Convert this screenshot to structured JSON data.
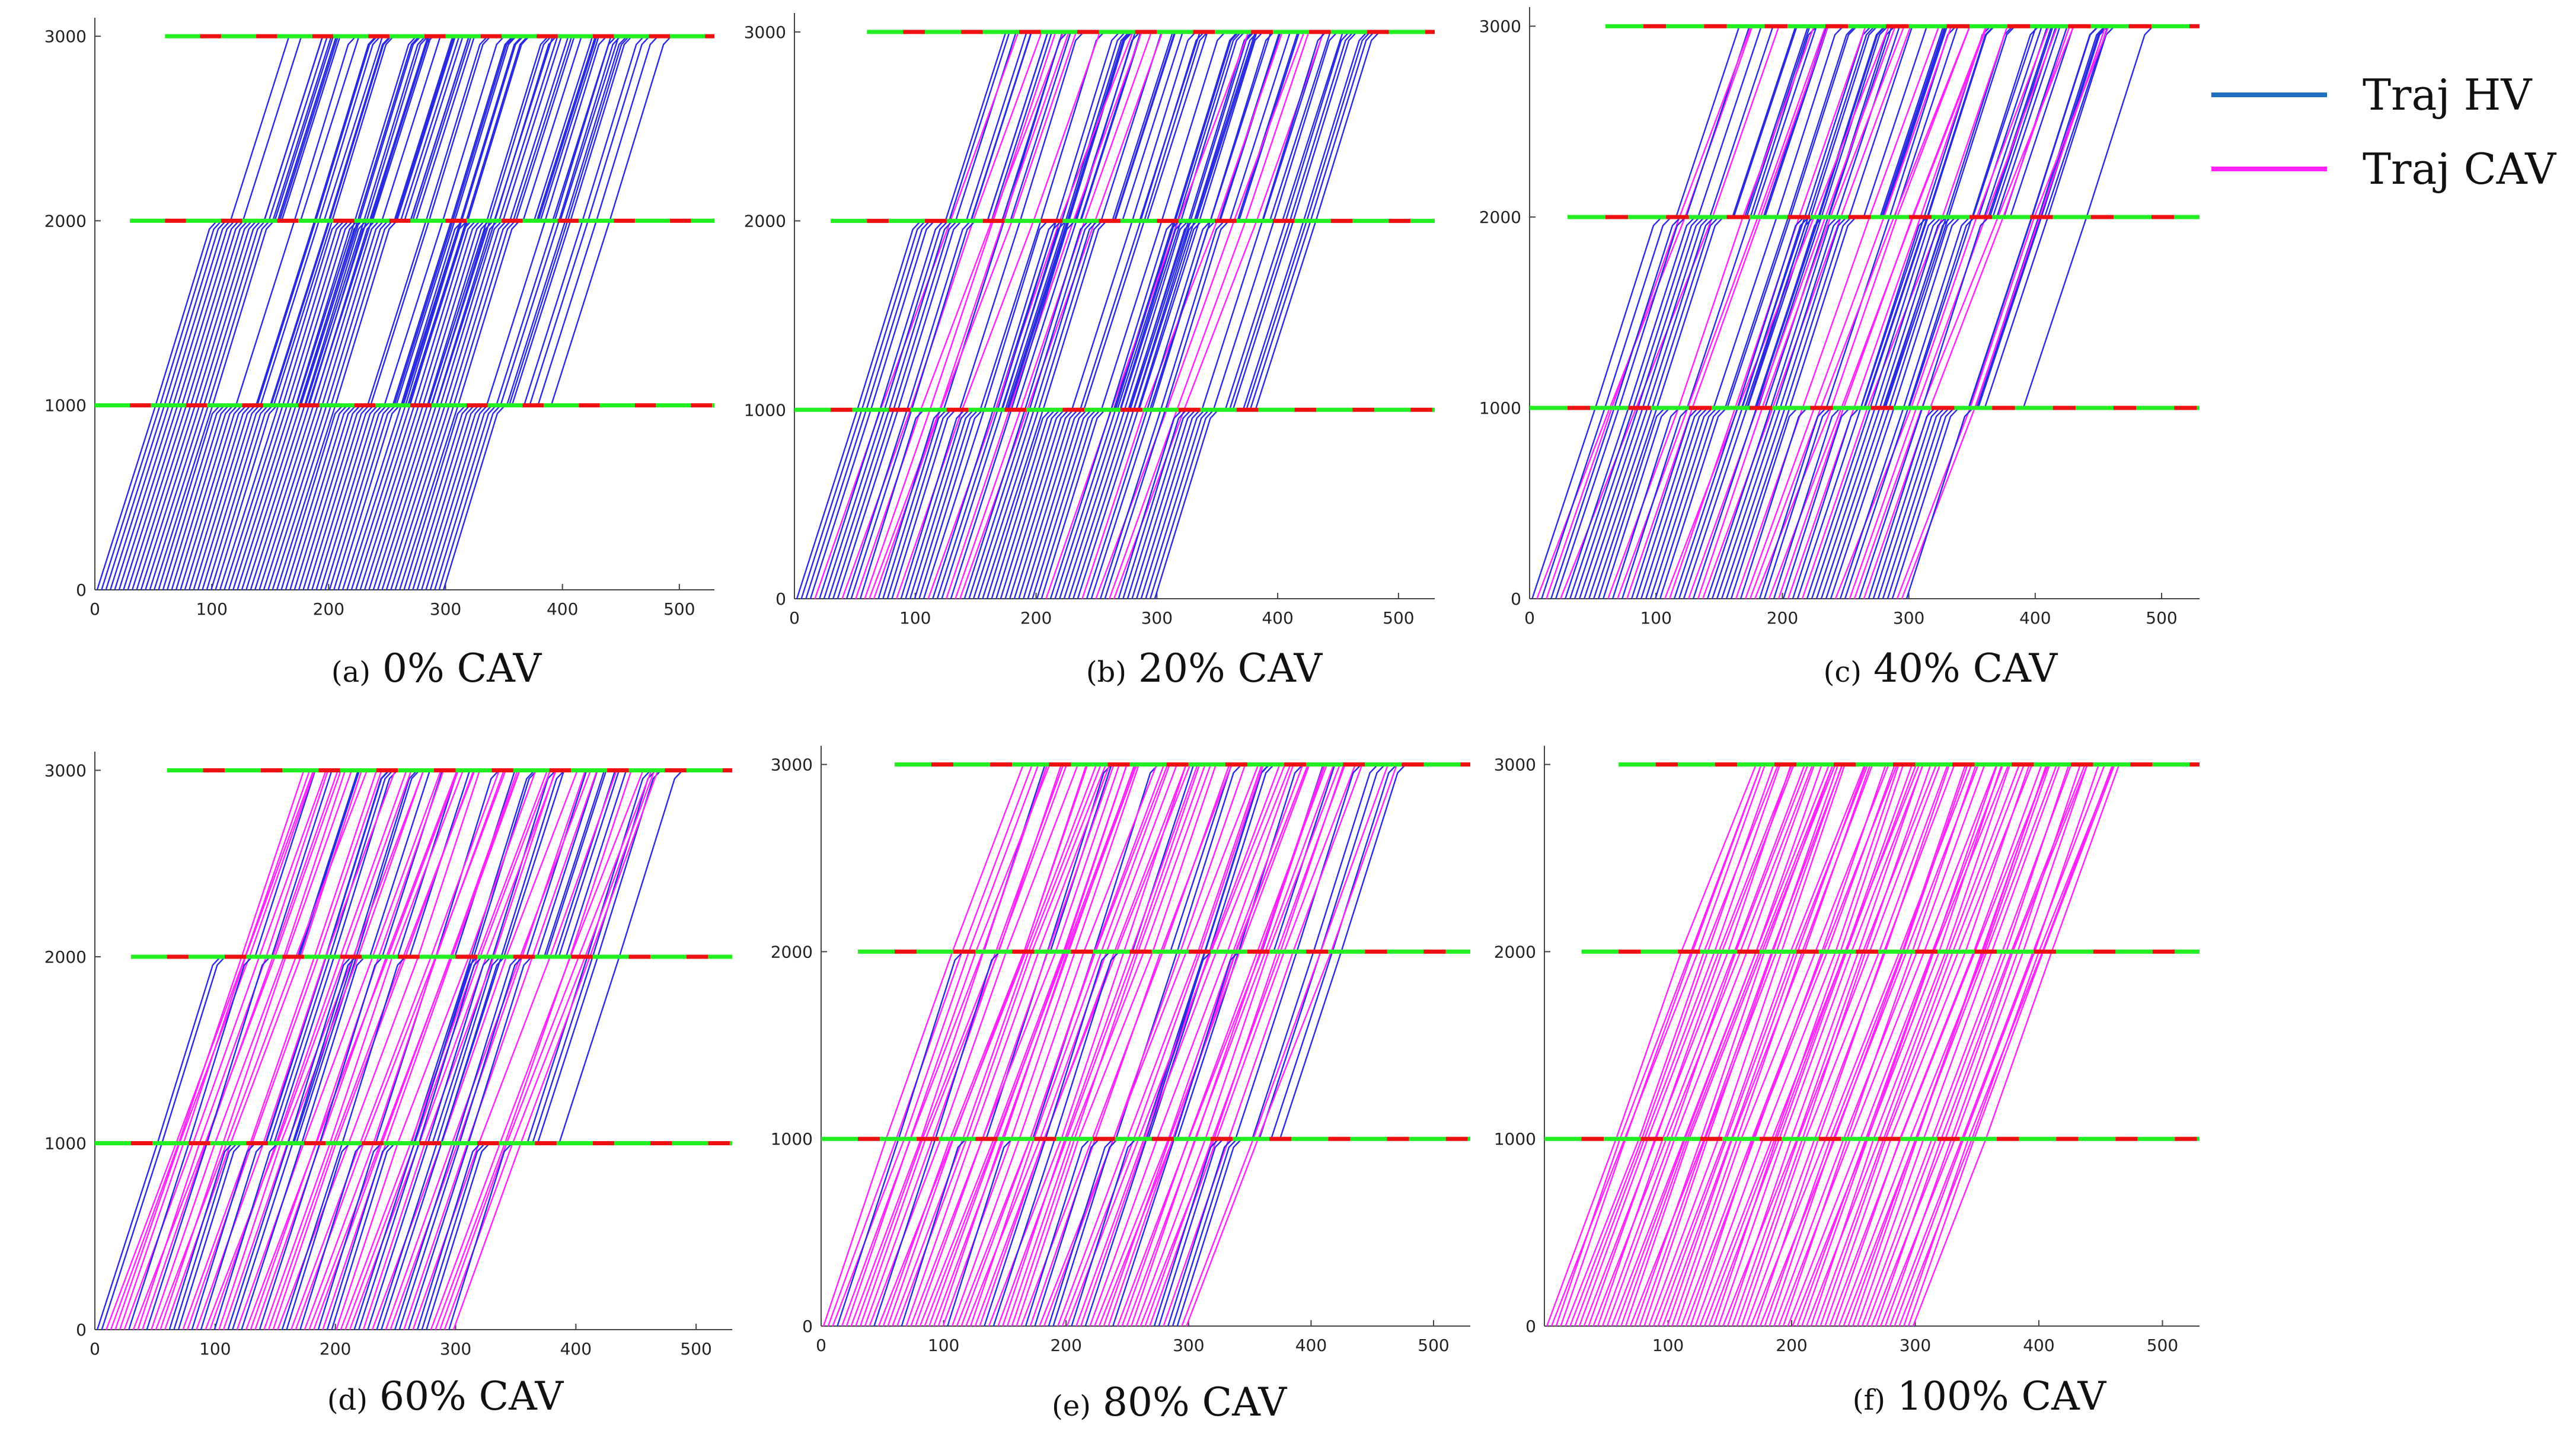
{
  "colors": {
    "hv": "#2a2ae0",
    "cav": "#ff22ff",
    "green_signal": "#22ee22",
    "red_signal": "#ee1111",
    "legend_hv": "#1f6fc0",
    "legend_cav": "#ff22ff",
    "axis": "#444444"
  },
  "legend": {
    "items": [
      {
        "label": "Traj HV",
        "color": "#1f6fc0"
      },
      {
        "label": "Traj CAV",
        "color": "#ff22ff"
      }
    ]
  },
  "chart_data": [
    {
      "type": "line",
      "caption_letter": "(a)",
      "caption_text": "0% CAV",
      "cav_share": 0,
      "xlim": [
        0,
        530
      ],
      "ylim": [
        0,
        3100
      ],
      "xticks": [
        0,
        100,
        200,
        300,
        400,
        500
      ],
      "yticks": [
        0,
        1000,
        2000,
        3000
      ],
      "xtick_labels": [
        "0",
        "100",
        "200",
        "300",
        "400",
        "500"
      ],
      "ytick_labels": [
        "0",
        "1000",
        "2000",
        "3000"
      ],
      "signal_positions": [
        1000,
        2000,
        3000
      ],
      "series": [
        {
          "name": "Traj HV",
          "vehicles": 80
        }
      ]
    },
    {
      "type": "line",
      "caption_letter": "(b)",
      "caption_text": "20% CAV",
      "cav_share": 0.2,
      "xlim": [
        0,
        530
      ],
      "ylim": [
        0,
        3100
      ],
      "xticks": [
        0,
        100,
        200,
        300,
        400,
        500
      ],
      "yticks": [
        0,
        1000,
        2000,
        3000
      ],
      "xtick_labels": [
        "0",
        "100",
        "200",
        "300",
        "400",
        "500"
      ],
      "ytick_labels": [
        "0",
        "1000",
        "2000",
        "3000"
      ],
      "signal_positions": [
        1000,
        2000,
        3000
      ],
      "series": [
        {
          "name": "Traj HV",
          "vehicles": 64
        },
        {
          "name": "Traj CAV",
          "vehicles": 16
        }
      ]
    },
    {
      "type": "line",
      "caption_letter": "(c)",
      "caption_text": "40% CAV",
      "cav_share": 0.4,
      "xlim": [
        0,
        530
      ],
      "ylim": [
        0,
        3100
      ],
      "xticks": [
        0,
        100,
        200,
        300,
        400,
        500
      ],
      "yticks": [
        0,
        1000,
        2000,
        3000
      ],
      "xtick_labels": [
        "0",
        "100",
        "200",
        "300",
        "400",
        "500"
      ],
      "ytick_labels": [
        "0",
        "1000",
        "2000",
        "3000"
      ],
      "signal_positions": [
        1000,
        2000,
        3000
      ],
      "series": [
        {
          "name": "Traj HV",
          "vehicles": 48
        },
        {
          "name": "Traj CAV",
          "vehicles": 32
        }
      ]
    },
    {
      "type": "line",
      "caption_letter": "(d)",
      "caption_text": "60% CAV",
      "cav_share": 0.6,
      "xlim": [
        0,
        530
      ],
      "ylim": [
        0,
        3100
      ],
      "xticks": [
        0,
        100,
        200,
        300,
        400,
        500
      ],
      "yticks": [
        0,
        1000,
        2000,
        3000
      ],
      "xtick_labels": [
        "0",
        "100",
        "200",
        "300",
        "400",
        "500"
      ],
      "ytick_labels": [
        "0",
        "1000",
        "2000",
        "3000"
      ],
      "signal_positions": [
        1000,
        2000,
        3000
      ],
      "series": [
        {
          "name": "Traj HV",
          "vehicles": 32
        },
        {
          "name": "Traj CAV",
          "vehicles": 48
        }
      ]
    },
    {
      "type": "line",
      "caption_letter": "(e)",
      "caption_text": "80% CAV",
      "cav_share": 0.8,
      "xlim": [
        0,
        530
      ],
      "ylim": [
        0,
        3100
      ],
      "xticks": [
        0,
        100,
        200,
        300,
        400,
        500
      ],
      "yticks": [
        0,
        1000,
        2000,
        3000
      ],
      "xtick_labels": [
        "0",
        "100",
        "200",
        "300",
        "400",
        "500"
      ],
      "ytick_labels": [
        "0",
        "1000",
        "2000",
        "3000"
      ],
      "signal_positions": [
        1000,
        2000,
        3000
      ],
      "series": [
        {
          "name": "Traj HV",
          "vehicles": 16
        },
        {
          "name": "Traj CAV",
          "vehicles": 64
        }
      ]
    },
    {
      "type": "line",
      "caption_letter": "(f)",
      "caption_text": "100% CAV",
      "cav_share": 1.0,
      "xlim": [
        0,
        530
      ],
      "ylim": [
        0,
        3100
      ],
      "xticks": [
        100,
        200,
        300,
        400,
        500
      ],
      "yticks": [
        0,
        1000,
        2000,
        3000
      ],
      "xtick_labels": [
        "100",
        "200",
        "300",
        "400",
        "500"
      ],
      "ytick_labels": [
        "0",
        "1000",
        "2000",
        "3000"
      ],
      "signal_positions": [
        1000,
        2000,
        3000
      ],
      "series": [
        {
          "name": "Traj CAV",
          "vehicles": 80
        }
      ]
    }
  ]
}
